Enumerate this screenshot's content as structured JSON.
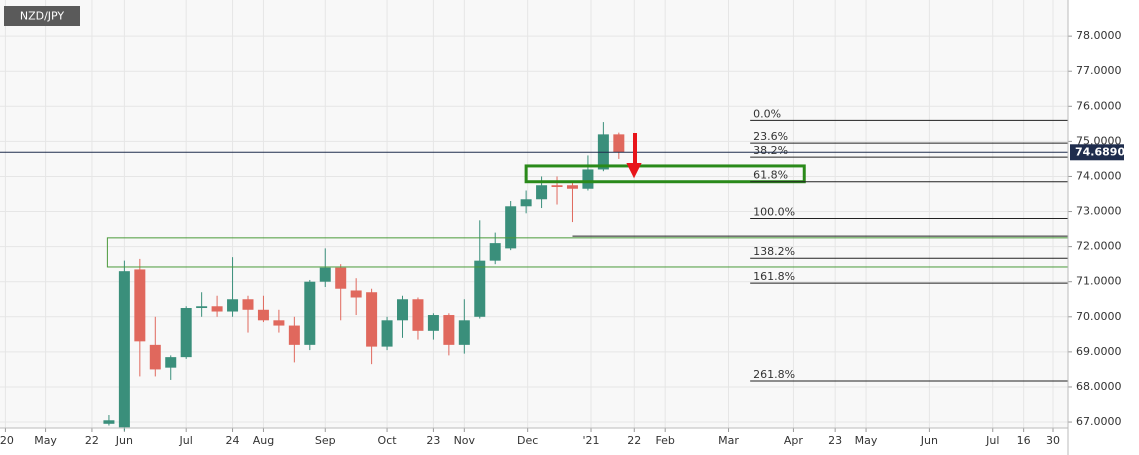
{
  "chart_data": {
    "type": "candlestick",
    "title": "NZD/JPY",
    "x": [
      0,
      1,
      2,
      3,
      4,
      5,
      6,
      7,
      8,
      9,
      10,
      11,
      12,
      13,
      14,
      15,
      16,
      17,
      18,
      19,
      20,
      21,
      22,
      23,
      24,
      25,
      26,
      27,
      28,
      29,
      30,
      31,
      32,
      33
    ],
    "open": [
      66.95,
      66.85,
      71.35,
      69.2,
      68.55,
      68.85,
      70.25,
      70.3,
      70.15,
      70.5,
      70.2,
      69.9,
      69.75,
      69.2,
      71.0,
      71.4,
      70.75,
      70.7,
      69.15,
      69.9,
      70.5,
      69.6,
      70.05,
      69.2,
      70.0,
      71.6,
      71.95,
      73.15,
      73.35,
      73.75,
      73.75,
      73.65,
      74.2,
      75.2
    ],
    "high": [
      67.2,
      71.6,
      71.65,
      70.0,
      68.9,
      70.3,
      70.7,
      70.6,
      71.7,
      70.6,
      70.6,
      70.2,
      70.0,
      71.05,
      71.95,
      71.5,
      71.1,
      70.8,
      70.0,
      70.6,
      70.55,
      70.1,
      70.1,
      70.5,
      72.75,
      72.4,
      73.3,
      73.6,
      74.0,
      74.0,
      73.85,
      74.6,
      75.55,
      75.25
    ],
    "low": [
      66.9,
      66.75,
      68.3,
      68.3,
      68.2,
      68.8,
      70.0,
      70.0,
      70.0,
      69.55,
      69.85,
      69.55,
      68.7,
      69.05,
      70.85,
      69.9,
      70.05,
      68.65,
      69.05,
      69.4,
      69.35,
      69.35,
      68.9,
      68.95,
      69.95,
      71.5,
      71.9,
      72.95,
      73.1,
      73.2,
      72.7,
      73.6,
      74.15,
      74.5
    ],
    "close": [
      67.05,
      71.3,
      69.3,
      68.5,
      68.85,
      70.25,
      70.3,
      70.15,
      70.5,
      70.2,
      69.9,
      69.75,
      69.2,
      71.0,
      71.4,
      70.8,
      70.55,
      69.15,
      69.9,
      70.5,
      69.6,
      70.05,
      69.2,
      69.9,
      71.6,
      72.1,
      73.15,
      73.35,
      73.75,
      73.7,
      73.65,
      74.2,
      75.2,
      74.69
    ],
    "up_color": "#3a8f7b",
    "down_color": "#e0685d",
    "xlim": [
      -7.05,
      62.07
    ],
    "xticks": [
      {
        "value": -6.7,
        "label": "'20"
      },
      {
        "value": -4.1,
        "label": "May"
      },
      {
        "value": -1.1,
        "label": "22"
      },
      {
        "value": 1,
        "label": "Jun"
      },
      {
        "value": 5,
        "label": "Jul"
      },
      {
        "value": 8,
        "label": "24"
      },
      {
        "value": 10,
        "label": "Aug"
      },
      {
        "value": 14,
        "label": "Sep"
      },
      {
        "value": 18,
        "label": "Oct"
      },
      {
        "value": 21,
        "label": "23"
      },
      {
        "value": 23,
        "label": "Nov"
      },
      {
        "value": 27.1,
        "label": "Dec"
      },
      {
        "value": 31.2,
        "label": "'21"
      },
      {
        "value": 34,
        "label": "22"
      },
      {
        "value": 36,
        "label": "Feb"
      },
      {
        "value": 40.1,
        "label": "Mar"
      },
      {
        "value": 44.3,
        "label": "Apr"
      },
      {
        "value": 47,
        "label": "23"
      },
      {
        "value": 49,
        "label": "May"
      },
      {
        "value": 53.1,
        "label": "Jun"
      },
      {
        "value": 57.2,
        "label": "Jul"
      },
      {
        "value": 59.2,
        "label": "16"
      },
      {
        "value": 61.1,
        "label": "30"
      }
    ],
    "ylim": [
      66.83,
      79.03
    ],
    "yticks": [
      {
        "value": 67,
        "label": "67.0000"
      },
      {
        "value": 68,
        "label": "68.0000"
      },
      {
        "value": 69,
        "label": "69.0000"
      },
      {
        "value": 70,
        "label": "70.0000"
      },
      {
        "value": 71,
        "label": "71.0000"
      },
      {
        "value": 72,
        "label": "72.0000"
      },
      {
        "value": 73,
        "label": "73.0000"
      },
      {
        "value": 74,
        "label": "74.0000"
      },
      {
        "value": 75,
        "label": "75.0000"
      },
      {
        "value": 76,
        "label": "76.0000"
      },
      {
        "value": 77,
        "label": "77.0000"
      },
      {
        "value": 78,
        "label": "78.0000"
      }
    ],
    "grid": true,
    "last_price": {
      "value": 74.689,
      "label": "74.6890",
      "color": "#1f2d4d"
    },
    "fib_start_x": 41.5,
    "fib_levels": [
      {
        "value": 75.6,
        "label": "0.0%"
      },
      {
        "value": 74.95,
        "label": "23.6%"
      },
      {
        "value": 74.55,
        "label": "38.2%"
      },
      {
        "value": 73.85,
        "label": "61.8%"
      },
      {
        "value": 72.8,
        "label": "100.0%"
      },
      {
        "value": 71.67,
        "label": "138.2%"
      },
      {
        "value": 70.96,
        "label": "161.8%"
      },
      {
        "value": 68.17,
        "label": "261.8%"
      }
    ],
    "extra_level": {
      "value": 72.3,
      "x": 30
    },
    "zones": [
      {
        "x": [
          27.0,
          45.0
        ],
        "y": [
          73.85,
          74.3
        ],
        "color": "#2a8a1a",
        "width": 3
      },
      {
        "x": [
          -0.1,
          62.07
        ],
        "y": [
          71.42,
          72.25
        ],
        "color": "#4a9a3a",
        "width": 1
      }
    ]
  }
}
